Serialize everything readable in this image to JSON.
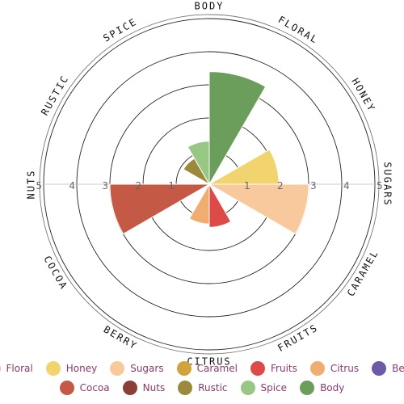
{
  "chart_data": {
    "type": "polar-area",
    "title": "",
    "rmax": 5,
    "ticks": [
      "1",
      "2",
      "3",
      "4",
      "5"
    ],
    "categories": [
      "BODY",
      "FLORAL",
      "HONEY",
      "SUGARS",
      "CARAMEL",
      "FRUITS",
      "CITRUS",
      "BERRY",
      "COCOA",
      "NUTS",
      "RUSTIC",
      "SPICE"
    ],
    "values": [
      3.4,
      0,
      2.1,
      3.0,
      0,
      1.3,
      1.2,
      0,
      3.0,
      0,
      0.9,
      1.3
    ],
    "colors": [
      "#6a9e5a",
      "#f4b8bc",
      "#f2d46e",
      "#f7c99c",
      "#d1a43b",
      "#de4a48",
      "#efad70",
      "#6b5aa6",
      "#c45a45",
      "#8b3f37",
      "#9c8a3c",
      "#98c785"
    ]
  },
  "legend": [
    [
      {
        "label": "Floral",
        "color": "#f4b8bc"
      },
      {
        "label": "Honey",
        "color": "#f2d46e"
      },
      {
        "label": "Sugars",
        "color": "#f7c99c"
      },
      {
        "label": "Caramel",
        "color": "#d1a43b"
      },
      {
        "label": "Fruits",
        "color": "#de4a48"
      },
      {
        "label": "Citrus",
        "color": "#efad70"
      },
      {
        "label": "Berry",
        "color": "#6b5aa6"
      }
    ],
    [
      {
        "label": "Cocoa",
        "color": "#c45a45"
      },
      {
        "label": "Nuts",
        "color": "#8b3f37"
      },
      {
        "label": "Rustic",
        "color": "#9c8a3c"
      },
      {
        "label": "Spice",
        "color": "#98c785"
      },
      {
        "label": "Body",
        "color": "#6a9e5a"
      }
    ]
  ]
}
